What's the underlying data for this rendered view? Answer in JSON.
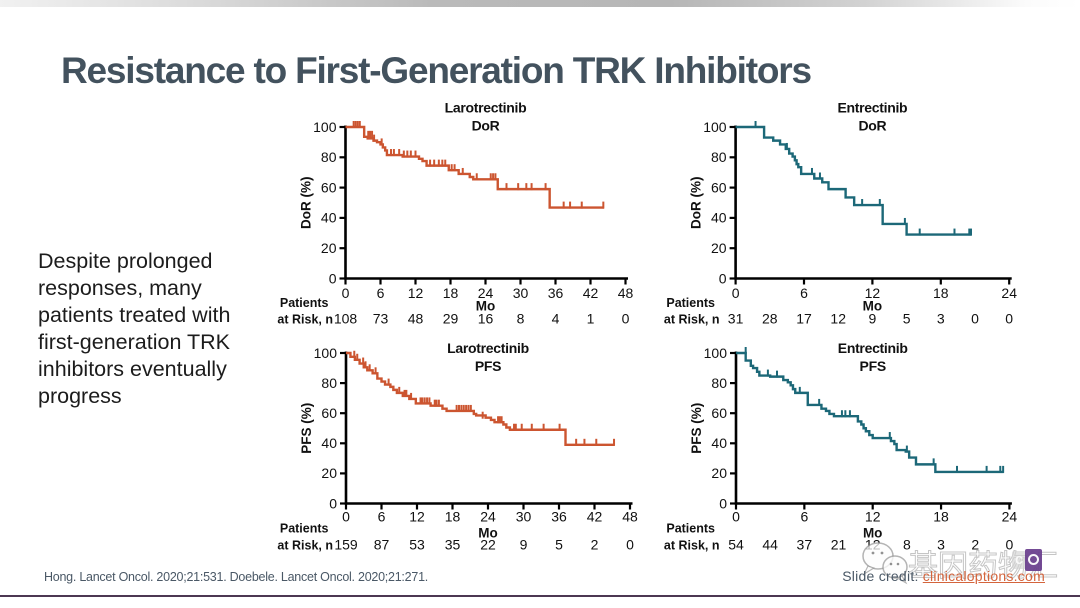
{
  "slide": {
    "title": "Resistance to First-Generation TRK Inhibitors",
    "side_note_lines": [
      "Despite prolonged",
      "responses, many",
      "patients treated with",
      "first-generation TRK",
      "inhibitors eventually",
      "progress"
    ],
    "footer": {
      "citation": "Hong. Lancet Oncol. 2020;21:531. Doebele. Lancet Oncol. 2020;21:271.",
      "credit_label": "Slide credit: ",
      "credit_link": "clinicaloptions.com"
    },
    "watermark": {
      "text": "基因药物汇",
      "logo_letter": "c",
      "accent_color": "#683c8c"
    },
    "colors": {
      "title": "#43525e",
      "larotrectinib_curve": "#cc5530",
      "entrectinib_curve": "#1c6878",
      "footer_text": "#4a5866",
      "credit_link": "#d4643c",
      "bottom_rule": "#4c3752",
      "axis": "#000000"
    }
  },
  "chart_data": [
    {
      "id": "laro-dor",
      "type": "line",
      "km_style": "step",
      "title_lines": [
        "Larotrectinib",
        "DoR"
      ],
      "xlabel": "Mo",
      "ylabel": "DoR (%)",
      "xlim": [
        0,
        48
      ],
      "ylim": [
        0,
        100
      ],
      "xticks": [
        0,
        6,
        12,
        18,
        24,
        30,
        36,
        42,
        48
      ],
      "yticks": [
        0,
        20,
        40,
        60,
        80,
        100
      ],
      "color": "#cc5530",
      "steps": [
        [
          0,
          100
        ],
        [
          3.2,
          93.5
        ],
        [
          3.8,
          92.5
        ],
        [
          4.8,
          91
        ],
        [
          5.4,
          90
        ],
        [
          6.0,
          88.5
        ],
        [
          6.4,
          86.5
        ],
        [
          6.8,
          84.5
        ],
        [
          7.1,
          81.5
        ],
        [
          9.8,
          80.5
        ],
        [
          12.6,
          79
        ],
        [
          13.2,
          77.5
        ],
        [
          13.9,
          74.5
        ],
        [
          17.7,
          71.5
        ],
        [
          19.4,
          69
        ],
        [
          21.3,
          67
        ],
        [
          21.9,
          65.5
        ],
        [
          26.1,
          59
        ],
        [
          35.0,
          46.8
        ]
      ],
      "end_month": 44.3,
      "censors": [
        [
          1.4,
          100
        ],
        [
          1.75,
          100
        ],
        [
          2.1,
          100
        ],
        [
          2.45,
          100
        ],
        [
          3.9,
          93.5
        ],
        [
          4.2,
          93.5
        ],
        [
          4.55,
          93.5
        ],
        [
          4.9,
          91
        ],
        [
          6.2,
          88.5
        ],
        [
          7.8,
          81.5
        ],
        [
          8.3,
          81.5
        ],
        [
          9.2,
          81.5
        ],
        [
          10.0,
          80.5
        ],
        [
          10.6,
          80.5
        ],
        [
          11.2,
          80.5
        ],
        [
          12.0,
          80.5
        ],
        [
          14.5,
          74.5
        ],
        [
          15.2,
          74.5
        ],
        [
          16.0,
          74.5
        ],
        [
          16.6,
          74.5
        ],
        [
          17.1,
          74.5
        ],
        [
          18.2,
          71.5
        ],
        [
          18.7,
          71.5
        ],
        [
          20.1,
          69
        ],
        [
          22.5,
          65.5
        ],
        [
          24.9,
          65.5
        ],
        [
          25.3,
          65.5
        ],
        [
          25.7,
          65.5
        ],
        [
          27.6,
          59
        ],
        [
          29.6,
          59
        ],
        [
          31.0,
          59
        ],
        [
          31.9,
          59
        ],
        [
          34.3,
          59
        ],
        [
          37.4,
          46.8
        ],
        [
          38.5,
          46.8
        ],
        [
          40.5,
          46.8
        ],
        [
          44.2,
          46.8
        ]
      ],
      "risk_label_lines": [
        "Patients",
        "at Risk, n"
      ],
      "risk_months": [
        0,
        6,
        12,
        18,
        24,
        30,
        36,
        42,
        48
      ],
      "risk_values": [
        108,
        73,
        48,
        29,
        16,
        8,
        4,
        1,
        0
      ]
    },
    {
      "id": "entr-dor",
      "type": "line",
      "km_style": "step",
      "title_lines": [
        "Entrectinib",
        "DoR"
      ],
      "xlabel": "Mo",
      "ylabel": "DoR (%)",
      "xlim": [
        0,
        24
      ],
      "ylim": [
        0,
        100
      ],
      "xticks": [
        0,
        6,
        12,
        18,
        24
      ],
      "yticks": [
        0,
        20,
        40,
        60,
        80,
        100
      ],
      "color": "#1c6878",
      "steps": [
        [
          0,
          100
        ],
        [
          2.5,
          93
        ],
        [
          3.3,
          91
        ],
        [
          3.9,
          88.5
        ],
        [
          4.4,
          85.5
        ],
        [
          4.7,
          82.5
        ],
        [
          5.0,
          80.5
        ],
        [
          5.2,
          78
        ],
        [
          5.35,
          75.5
        ],
        [
          5.5,
          73.5
        ],
        [
          5.75,
          69
        ],
        [
          6.9,
          66
        ],
        [
          7.6,
          63.5
        ],
        [
          8.15,
          59
        ],
        [
          9.65,
          53.5
        ],
        [
          10.4,
          48.5
        ],
        [
          12.9,
          36
        ],
        [
          15.0,
          29
        ]
      ],
      "end_month": 20.7,
      "censors": [
        [
          1.75,
          100
        ],
        [
          4.5,
          85.5
        ],
        [
          6.7,
          69
        ],
        [
          7.4,
          66
        ],
        [
          11.1,
          48.5
        ],
        [
          12.65,
          48.5
        ],
        [
          14.85,
          36
        ],
        [
          16.15,
          29
        ],
        [
          19.2,
          29
        ],
        [
          20.5,
          29
        ],
        [
          20.65,
          29
        ]
      ],
      "risk_label_lines": [
        "Patients",
        "at Risk, n"
      ],
      "risk_months": [
        0,
        3,
        6,
        9,
        12,
        15,
        18,
        21,
        24
      ],
      "risk_values": [
        31,
        28,
        17,
        12,
        9,
        5,
        3,
        0,
        0
      ]
    },
    {
      "id": "laro-pfs",
      "type": "line",
      "km_style": "step",
      "title_lines": [
        "Larotrectinib",
        "PFS"
      ],
      "xlabel": "Mo",
      "ylabel": "PFS (%)",
      "xlim": [
        0,
        48
      ],
      "ylim": [
        0,
        100
      ],
      "xticks": [
        0,
        6,
        12,
        18,
        24,
        30,
        36,
        42,
        48
      ],
      "yticks": [
        0,
        20,
        40,
        60,
        80,
        100
      ],
      "color": "#cc5530",
      "steps": [
        [
          0,
          100
        ],
        [
          0.75,
          97.5
        ],
        [
          1.5,
          95.5
        ],
        [
          2.3,
          93
        ],
        [
          3.0,
          90.5
        ],
        [
          3.6,
          88.5
        ],
        [
          4.5,
          86.5
        ],
        [
          5.3,
          83
        ],
        [
          6.0,
          81
        ],
        [
          6.6,
          79
        ],
        [
          7.5,
          77.5
        ],
        [
          8.0,
          75.5
        ],
        [
          8.6,
          73.5
        ],
        [
          9.6,
          71.5
        ],
        [
          10.7,
          69.5
        ],
        [
          11.8,
          66.5
        ],
        [
          14.3,
          65
        ],
        [
          16.3,
          63
        ],
        [
          17.0,
          61.5
        ],
        [
          21.6,
          59.5
        ],
        [
          22.0,
          58.5
        ],
        [
          23.6,
          57
        ],
        [
          24.5,
          55.5
        ],
        [
          25.1,
          54
        ],
        [
          26.6,
          52.5
        ],
        [
          27.1,
          50.5
        ],
        [
          27.7,
          49
        ],
        [
          37.1,
          39
        ]
      ],
      "end_month": 45.4,
      "censors": [
        [
          1.4,
          97.5
        ],
        [
          1.9,
          95.5
        ],
        [
          2.9,
          93
        ],
        [
          3.3,
          90.5
        ],
        [
          4.0,
          88.5
        ],
        [
          5.0,
          86.5
        ],
        [
          7.2,
          79
        ],
        [
          9.0,
          73.5
        ],
        [
          9.9,
          71.5
        ],
        [
          10.2,
          71.5
        ],
        [
          11.0,
          69.5
        ],
        [
          12.6,
          66.5
        ],
        [
          12.9,
          66.5
        ],
        [
          13.3,
          66.5
        ],
        [
          13.7,
          66.5
        ],
        [
          14.1,
          66.5
        ],
        [
          15.0,
          65
        ],
        [
          15.3,
          65
        ],
        [
          15.7,
          65
        ],
        [
          18.7,
          61.5
        ],
        [
          19.1,
          61.5
        ],
        [
          19.5,
          61.5
        ],
        [
          19.9,
          61.5
        ],
        [
          20.3,
          61.5
        ],
        [
          20.7,
          61.5
        ],
        [
          21.1,
          61.5
        ],
        [
          23.1,
          57
        ],
        [
          25.7,
          54
        ],
        [
          26.0,
          54
        ],
        [
          26.3,
          54
        ],
        [
          28.4,
          49
        ],
        [
          28.7,
          49
        ],
        [
          29.7,
          49
        ],
        [
          31.4,
          49
        ],
        [
          33.4,
          49
        ],
        [
          36.1,
          49
        ],
        [
          38.9,
          39
        ],
        [
          40.3,
          39
        ],
        [
          42.3,
          39
        ],
        [
          45.3,
          39
        ]
      ],
      "risk_label_lines": [
        "Patients",
        "at Risk, n"
      ],
      "risk_months": [
        0,
        6,
        12,
        18,
        24,
        30,
        36,
        42,
        48
      ],
      "risk_values": [
        159,
        87,
        53,
        35,
        22,
        9,
        5,
        2,
        0
      ]
    },
    {
      "id": "entr-pfs",
      "type": "line",
      "km_style": "step",
      "title_lines": [
        "Entrectinib",
        "PFS"
      ],
      "xlabel": "Mo",
      "ylabel": "PFS (%)",
      "xlim": [
        0,
        24
      ],
      "ylim": [
        0,
        100
      ],
      "xticks": [
        0,
        6,
        12,
        18,
        24
      ],
      "yticks": [
        0,
        20,
        40,
        60,
        80,
        100
      ],
      "color": "#1c6878",
      "steps": [
        [
          0,
          100
        ],
        [
          0.85,
          95
        ],
        [
          1.3,
          91.5
        ],
        [
          1.5,
          90
        ],
        [
          1.85,
          87.5
        ],
        [
          2.05,
          85
        ],
        [
          3.0,
          84.3
        ],
        [
          4.15,
          82
        ],
        [
          4.55,
          80.5
        ],
        [
          4.8,
          78.5
        ],
        [
          5.0,
          76
        ],
        [
          5.2,
          73.5
        ],
        [
          6.3,
          65.5
        ],
        [
          7.5,
          63
        ],
        [
          7.9,
          61.5
        ],
        [
          8.2,
          59.5
        ],
        [
          8.6,
          58
        ],
        [
          10.7,
          54.5
        ],
        [
          11.0,
          52.5
        ],
        [
          11.2,
          50
        ],
        [
          11.4,
          48
        ],
        [
          11.7,
          45.5
        ],
        [
          12.0,
          43.5
        ],
        [
          13.6,
          41.5
        ],
        [
          13.9,
          39.5
        ],
        [
          14.1,
          35.5
        ],
        [
          14.9,
          34.5
        ],
        [
          15.2,
          30.5
        ],
        [
          15.8,
          26
        ],
        [
          17.5,
          21
        ]
      ],
      "end_month": 23.5,
      "censors": [
        [
          0.85,
          100
        ],
        [
          2.8,
          85
        ],
        [
          3.6,
          84.3
        ],
        [
          5.6,
          73.5
        ],
        [
          7.3,
          65.5
        ],
        [
          9.3,
          58
        ],
        [
          9.6,
          58
        ],
        [
          10.0,
          58
        ],
        [
          13.5,
          43.5
        ],
        [
          15.0,
          34.5
        ],
        [
          17.35,
          26
        ],
        [
          19.4,
          21
        ],
        [
          22.0,
          21
        ],
        [
          23.2,
          21
        ],
        [
          23.45,
          21
        ]
      ],
      "risk_label_lines": [
        "Patients",
        "at Risk, n"
      ],
      "risk_months": [
        0,
        3,
        6,
        9,
        12,
        15,
        18,
        21,
        24
      ],
      "risk_values": [
        54,
        44,
        37,
        21,
        12,
        8,
        3,
        2,
        0
      ]
    }
  ]
}
